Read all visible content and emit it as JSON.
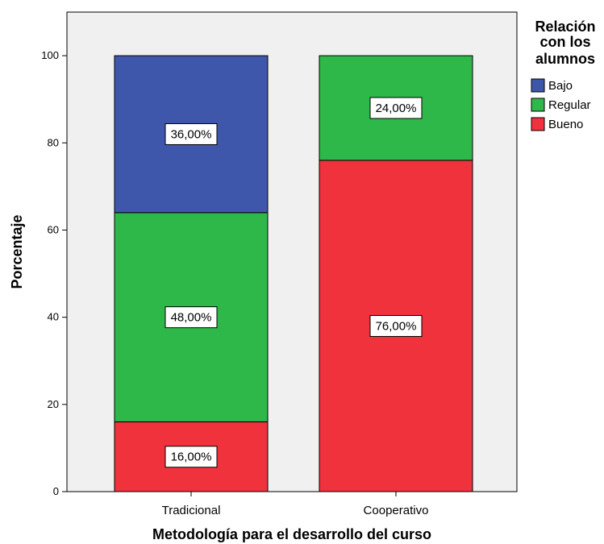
{
  "chart_data": {
    "type": "bar",
    "stacked": true,
    "categories": [
      "Tradicional",
      "Cooperativo"
    ],
    "series": [
      {
        "name": "Bueno",
        "values": [
          16,
          76
        ],
        "labels": [
          "16,00%",
          "76,00%"
        ],
        "color": "#f0323c"
      },
      {
        "name": "Regular",
        "values": [
          48,
          24
        ],
        "labels": [
          "48,00%",
          "24,00%"
        ],
        "color": "#2fb84a"
      },
      {
        "name": "Bajo",
        "values": [
          36,
          0
        ],
        "labels": [
          "36,00%",
          ""
        ],
        "color": "#3f57aa"
      }
    ],
    "xlabel": "Metodología para el desarrollo del curso",
    "ylabel": "Porcentaje",
    "ylim": [
      0,
      110
    ],
    "yticks": [
      0,
      20,
      40,
      60,
      80,
      100
    ],
    "grid": false,
    "plot_background": "#f0f0f0",
    "legend": {
      "title_lines": [
        "Relación",
        "con los",
        "alumnos"
      ],
      "order": [
        "Bajo",
        "Regular",
        "Bueno"
      ],
      "placement": "right"
    }
  }
}
